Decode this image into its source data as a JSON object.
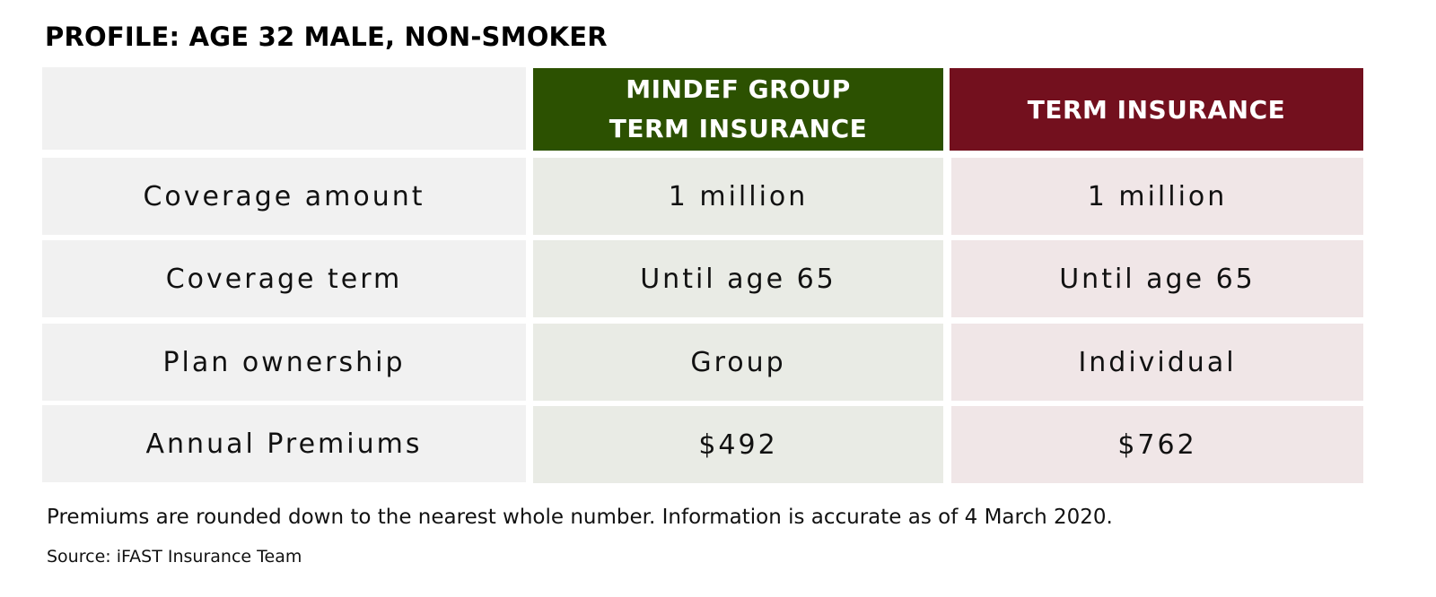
{
  "profile_title": "PROFILE: AGE 32 MALE, NON-SMOKER",
  "table": {
    "headers": {
      "mindef_line1": "MINDEF GROUP",
      "mindef_line2": "TERM INSURANCE",
      "term": "TERM INSURANCE"
    },
    "rows": [
      {
        "label": "Coverage amount",
        "mindef": "1 million",
        "term": "1 million"
      },
      {
        "label": "Coverage term",
        "mindef": "Until age 65",
        "term": "Until age 65"
      },
      {
        "label": "Plan ownership",
        "mindef": "Group",
        "term": "Individual"
      },
      {
        "label": "Annual Premiums",
        "mindef": "$492",
        "term": "$762"
      }
    ]
  },
  "note": "Premiums are rounded down to the nearest whole number. Information is accurate as of 4 March 2020.",
  "source": "Source: iFAST Insurance Team",
  "colors": {
    "mindef_header": "#2c5101",
    "term_header": "#73101e",
    "label_bg": "#f1f1f1",
    "mindef_bg": "#e9ebe5",
    "term_bg": "#f0e6e7"
  }
}
